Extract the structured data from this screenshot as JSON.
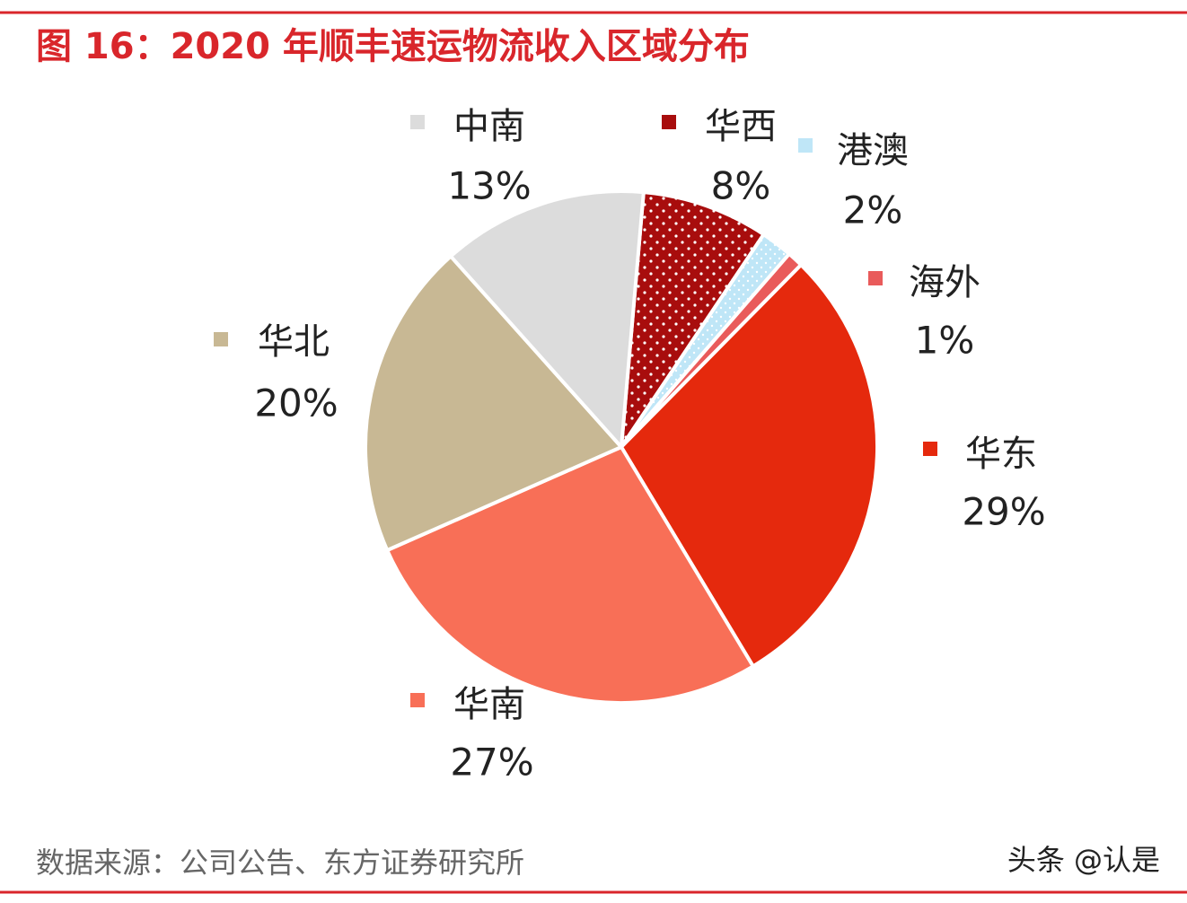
{
  "chart_data": {
    "type": "pie",
    "title": "图 16：2020 年顺丰速运物流收入区域分布",
    "categories": [
      "华西",
      "港澳",
      "海外",
      "华东",
      "华南",
      "华北",
      "中南"
    ],
    "values": [
      8,
      2,
      1,
      29,
      27,
      20,
      13
    ],
    "value_labels": [
      "8%",
      "2%",
      "1%",
      "29%",
      "27%",
      "20%",
      "13%"
    ],
    "colors": [
      "#a80d0d",
      "#bfe6f7",
      "#e95b5b",
      "#e5290d",
      "#f86f57",
      "#c8b894",
      "#dcdcdc"
    ],
    "source": "数据来源：公司公告、东方证券研究所",
    "watermark": "头条 @认是"
  }
}
